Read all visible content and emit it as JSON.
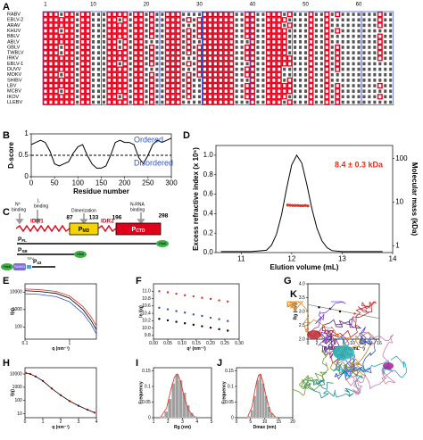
{
  "alignment": {
    "label": "A",
    "positions": [
      1,
      10,
      20,
      30,
      40,
      50,
      60
    ],
    "species": [
      "RABV",
      "EBLV-2",
      "ARAV",
      "KHUV",
      "BBLV",
      "ABLV",
      "GBLV",
      "TWBLV",
      "IRKV",
      "EBLV-1",
      "DUVV",
      "MOKV",
      "SHIBV",
      "LBV",
      "MCBV",
      "IKOV",
      "LLEBV"
    ]
  },
  "diagram": {
    "label": "C",
    "n0_binding": [
      "N⁰",
      "binding"
    ],
    "l_binding": [
      "L",
      "binding"
    ],
    "dimerization": "Dimerization",
    "rna_binding": [
      "N-RNA",
      "binding"
    ],
    "positions": [
      87,
      133,
      196,
      298
    ],
    "idr1": "IDR1",
    "idr2": "IDR2",
    "pmd": {
      "name": "P",
      "sub": "MD"
    },
    "pctd": {
      "name": "P",
      "sub": "CTD"
    },
    "constructs": [
      {
        "name": "P",
        "sub": "FL"
      },
      {
        "name": "P",
        "sub": "SB"
      },
      {
        "name": "P",
        "sub": "43"
      }
    ],
    "tags": [
      "His6",
      "His6",
      "His6",
      "SUMO",
      "TEV"
    ]
  },
  "structure": {
    "label": "K"
  },
  "chart_data": [
    {
      "type": "line",
      "label": "B",
      "xlabel": "Residue number",
      "ylabel": "D-score",
      "xlim": [
        0,
        300
      ],
      "ylim": [
        0,
        1
      ],
      "xticks": [
        0,
        50,
        100,
        150,
        200,
        250,
        300
      ],
      "yticks": [
        0,
        0.5,
        1
      ],
      "annotations": [
        {
          "text": "Ordered",
          "color": "#2f55c8"
        },
        {
          "text": "Disordered",
          "color": "#2f55c8"
        }
      ],
      "series": [
        {
          "color": "#000000",
          "x": [
            0,
            10,
            20,
            30,
            40,
            50,
            60,
            70,
            80,
            90,
            100,
            110,
            120,
            130,
            140,
            150,
            160,
            170,
            180,
            190,
            200,
            210,
            220,
            230,
            240,
            250,
            260,
            270,
            280,
            290,
            300
          ],
          "values": [
            0.75,
            0.8,
            0.85,
            0.8,
            0.6,
            0.3,
            0.25,
            0.3,
            0.35,
            0.55,
            0.7,
            0.75,
            0.5,
            0.3,
            0.2,
            0.2,
            0.25,
            0.5,
            0.8,
            0.85,
            0.8,
            0.8,
            0.75,
            0.45,
            0.3,
            0.5,
            0.75,
            0.85,
            0.8,
            0.85,
            0.9
          ]
        },
        {
          "color": "#000000",
          "dash": true,
          "x": [
            0,
            300
          ],
          "values": [
            0.5,
            0.5
          ]
        }
      ]
    },
    {
      "type": "line",
      "label": "D",
      "xlabel": "Elution volume (mL)",
      "ylabel": "Excess refractive index (x 10⁵)",
      "y2label": "Molecular mass (kDa)",
      "xlim": [
        10.5,
        14
      ],
      "ylim": [
        0,
        1.1
      ],
      "xticks": [
        11,
        12,
        13,
        14
      ],
      "yticks": [
        {
          "value": 0,
          "label": "0.0"
        },
        0.2,
        0.4,
        0.6,
        0.8,
        {
          "value": 1,
          "label": "1.0"
        }
      ],
      "y2log": true,
      "y2lim": [
        0.7,
        200
      ],
      "y2ticks": [
        1,
        10,
        100
      ],
      "annotations": [
        {
          "text": "8.4 ± 0.3 kDa",
          "color": "#e0301e"
        }
      ],
      "series": [
        {
          "color": "#000000",
          "x": [
            10.6,
            11.2,
            11.5,
            11.6,
            11.7,
            11.8,
            11.9,
            12.0,
            12.1,
            12.2,
            12.3,
            12.4,
            12.5,
            12.6,
            12.7,
            12.8,
            13.0,
            13.8
          ],
          "values": [
            0.01,
            0.01,
            0.024,
            0.076,
            0.19,
            0.39,
            0.66,
            0.9,
            1.0,
            0.92,
            0.7,
            0.45,
            0.25,
            0.12,
            0.05,
            0.02,
            0.01,
            0.01
          ]
        },
        {
          "color": "#e0301e",
          "axis": "y2",
          "style": "points",
          "x": [
            11.92,
            11.97,
            12.02,
            12.07,
            12.12,
            12.17,
            12.22,
            12.27,
            12.32
          ],
          "values": [
            8.6,
            8.5,
            8.4,
            8.4,
            8.4,
            8.3,
            8.3,
            8.4,
            8.2
          ]
        }
      ]
    },
    {
      "type": "line",
      "label": "E",
      "xlabel": "q (nm⁻¹)",
      "ylabel": "I(q)",
      "xlog": true,
      "ylog": true,
      "xlim": [
        0.1,
        4
      ],
      "ylim": [
        20,
        30000
      ],
      "xticks": [
        0.1,
        1
      ],
      "yticks": [
        100,
        1000,
        10000
      ],
      "series": [
        {
          "color": "#e0301e",
          "x": [
            0.1,
            0.2,
            0.5,
            1,
            2,
            3,
            4
          ],
          "values": [
            15000,
            14000,
            11000,
            6000,
            1500,
            400,
            120
          ]
        },
        {
          "color": "#000000",
          "x": [
            0.1,
            0.2,
            0.5,
            1,
            2,
            3,
            4
          ],
          "values": [
            12000,
            11000,
            8500,
            4500,
            1000,
            250,
            70
          ]
        },
        {
          "color": "#2f55c8",
          "x": [
            0.1,
            0.2,
            0.5,
            1,
            2,
            3,
            4
          ],
          "values": [
            8000,
            7500,
            5500,
            2800,
            600,
            150,
            40
          ]
        }
      ]
    },
    {
      "type": "line",
      "label": "F",
      "xlabel": "q² (nm⁻²)",
      "ylabel": "ln I(q)",
      "xlim": [
        0,
        0.3
      ],
      "ylim": [
        9.7,
        11.2
      ],
      "xticks": [
        {
          "value": 0,
          "label": "0.00"
        },
        0.05,
        {
          "value": 0.1,
          "label": "0.10"
        },
        0.15,
        {
          "value": 0.2,
          "label": "0.20"
        },
        0.25,
        {
          "value": 0.3,
          "label": "0.30"
        }
      ],
      "yticks": [
        9.8,
        {
          "value": 10,
          "label": "10.0"
        },
        10.2,
        10.4,
        10.6,
        10.8,
        {
          "value": 11,
          "label": "11.0"
        }
      ],
      "series": [
        {
          "color": "#e0301e",
          "style": "points",
          "x": [
            0.02,
            0.05,
            0.08,
            0.11,
            0.14,
            0.17,
            0.2,
            0.23,
            0.26
          ],
          "values": [
            11.0,
            10.97,
            10.93,
            10.89,
            10.86,
            10.82,
            10.79,
            10.75,
            10.72
          ]
        },
        {
          "color": "#2f55c8",
          "style": "points",
          "x": [
            0.02,
            0.05,
            0.08,
            0.11,
            0.14,
            0.17,
            0.2,
            0.23,
            0.26
          ],
          "values": [
            10.55,
            10.51,
            10.46,
            10.42,
            10.37,
            10.33,
            10.28,
            10.24,
            10.19
          ]
        },
        {
          "color": "#000000",
          "style": "points",
          "x": [
            0.02,
            0.05,
            0.08,
            0.11,
            0.14,
            0.17,
            0.2,
            0.23,
            0.26
          ],
          "values": [
            10.25,
            10.21,
            10.17,
            10.13,
            10.09,
            10.05,
            10.01,
            9.97,
            9.93
          ]
        }
      ]
    },
    {
      "type": "line",
      "label": "G",
      "xlabel": "[RABV P] (mg.mL⁻¹)",
      "ylabel": "Rg (nm)",
      "xlim": [
        0,
        16
      ],
      "ylim": [
        2,
        4
      ],
      "xticks": [
        0,
        2,
        4,
        6,
        8,
        10,
        12,
        14,
        16
      ],
      "yticks": [
        {
          "value": 2,
          "label": "2.0"
        },
        2.5,
        {
          "value": 3,
          "label": "3.0"
        },
        3.5,
        {
          "value": 4,
          "label": "4.0"
        }
      ],
      "series": [
        {
          "color": "#888888",
          "x": [
            0,
            16
          ],
          "values": [
            3.25,
            2.75
          ]
        },
        {
          "color": "#000000",
          "style": "points",
          "x": [
            2.5,
            5,
            7.2
          ],
          "values": [
            3.15,
            3.1,
            3.0
          ]
        },
        {
          "color": "#e0301e",
          "style": "points",
          "x": [
            10.5
          ],
          "values": [
            2.92
          ]
        }
      ]
    },
    {
      "type": "line",
      "label": "H",
      "xlabel": "q (nm⁻¹)",
      "ylabel": "I(q)",
      "ylog": true,
      "xlim": [
        0,
        4
      ],
      "ylim": [
        5,
        30000
      ],
      "xticks": [
        0,
        1,
        2,
        3,
        4
      ],
      "yticks": [
        10,
        100,
        1000,
        10000
      ],
      "series": [
        {
          "color": "#e0301e",
          "style": "points",
          "x": [
            0.05,
            0.3,
            0.6,
            1,
            1.5,
            2,
            2.5,
            3,
            3.5,
            3.9
          ],
          "values": [
            12000,
            10000,
            6500,
            3000,
            800,
            250,
            90,
            40,
            20,
            12
          ]
        },
        {
          "color": "#000000",
          "x": [
            0.05,
            0.3,
            0.6,
            1,
            1.5,
            2,
            2.5,
            3,
            3.5,
            3.9
          ],
          "values": [
            12000,
            10000,
            6500,
            3000,
            800,
            250,
            90,
            40,
            20,
            12
          ]
        }
      ]
    },
    {
      "type": "bar",
      "label": "I",
      "xlabel": "Rg (nm)",
      "ylabel": "Frequency",
      "xlim": [
        1,
        5
      ],
      "ylim": [
        0,
        0.16
      ],
      "xticks": [
        1,
        2,
        3,
        4,
        5
      ],
      "yticks": [
        0,
        0.05,
        0.1,
        0.15
      ],
      "bar_color": "#a0a0a0",
      "bins": [
        1.5,
        1.75,
        2.0,
        2.25,
        2.5,
        2.75,
        3.0,
        3.25,
        3.5,
        3.75,
        4.0
      ],
      "counts": [
        0.005,
        0.02,
        0.06,
        0.11,
        0.14,
        0.12,
        0.08,
        0.04,
        0.015,
        0.005
      ],
      "series": [
        {
          "color": "#e0301e",
          "x": [
            1.5,
            1.9,
            2.2,
            2.45,
            2.65,
            2.85,
            3.1,
            3.4,
            3.8
          ],
          "values": [
            0.003,
            0.03,
            0.09,
            0.13,
            0.14,
            0.12,
            0.07,
            0.025,
            0.004
          ]
        }
      ]
    },
    {
      "type": "bar",
      "label": "J",
      "xlabel": "Dmax (nm)",
      "ylabel": "Frequency",
      "xlim": [
        0,
        20
      ],
      "ylim": [
        0,
        0.16
      ],
      "xticks": [
        0,
        5,
        10,
        15,
        20
      ],
      "yticks": [
        0,
        0.05,
        0.1,
        0.15
      ],
      "bar_color": "#a0a0a0",
      "bins": [
        4,
        5,
        6,
        7,
        8,
        9,
        10,
        11,
        12,
        13,
        14
      ],
      "counts": [
        0.005,
        0.025,
        0.07,
        0.12,
        0.14,
        0.11,
        0.07,
        0.035,
        0.015,
        0.005
      ],
      "series": [
        {
          "color": "#e0301e",
          "x": [
            4,
            5.5,
            6.8,
            7.8,
            8.5,
            9.3,
            10.5,
            12,
            13.8
          ],
          "values": [
            0.003,
            0.035,
            0.1,
            0.135,
            0.14,
            0.12,
            0.07,
            0.02,
            0.003
          ]
        }
      ]
    }
  ]
}
